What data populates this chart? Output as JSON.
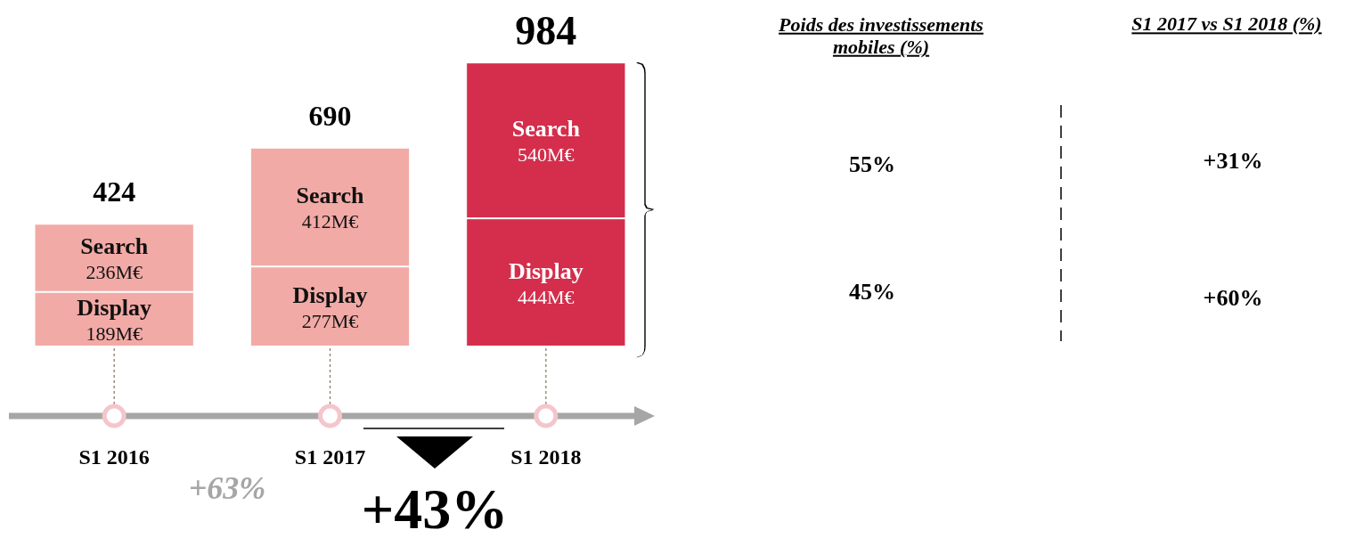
{
  "chart_data": [
    {
      "type": "bar",
      "stacked": true,
      "categories": [
        "S1 2016",
        "S1 2017",
        "S1 2018"
      ],
      "series": [
        {
          "name": "Display",
          "values": [
            189,
            277,
            444
          ],
          "colors": [
            "#f2aaa6",
            "#f2aaa6",
            "#d42e4c"
          ],
          "value_labels": [
            "189M€",
            "277M€",
            "444M€"
          ]
        },
        {
          "name": "Search",
          "values": [
            236,
            412,
            540
          ],
          "colors": [
            "#f2aaa6",
            "#f2aaa6",
            "#d42e4c"
          ],
          "value_labels": [
            "236M€",
            "412M€",
            "540M€"
          ]
        }
      ],
      "totals": [
        "424",
        "690",
        "984"
      ],
      "tick_labels": "x",
      "annotations": [
        "+63%",
        "+43%"
      ]
    },
    {
      "type": "other",
      "annotations": [
        "Poids des investissements mobiles (%)",
        "55%",
        "45%",
        "S1 2017 vs S1 2018 (%)",
        "+31%",
        "+60%"
      ]
    }
  ]
}
